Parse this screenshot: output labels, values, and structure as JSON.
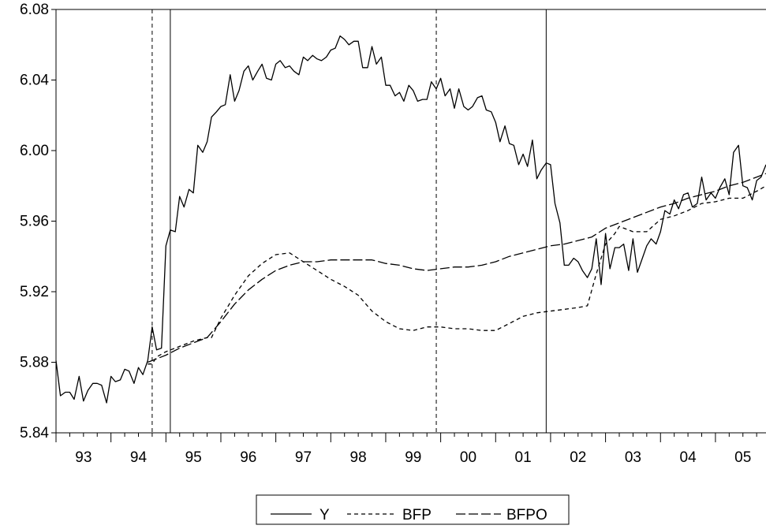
{
  "chart_data": {
    "type": "line",
    "title": "",
    "xlabel": "",
    "ylabel": "",
    "ylim": [
      5.84,
      6.08
    ],
    "yticks": [
      "5.84",
      "5.88",
      "5.92",
      "5.96",
      "6.00",
      "6.04",
      "6.08"
    ],
    "xlim": [
      1993.0,
      2005.92
    ],
    "xticks": [
      {
        "label": "93",
        "x": 1993.5
      },
      {
        "label": "94",
        "x": 1994.5
      },
      {
        "label": "95",
        "x": 1995.5
      },
      {
        "label": "96",
        "x": 1996.5
      },
      {
        "label": "97",
        "x": 1997.5
      },
      {
        "label": "98",
        "x": 1998.5
      },
      {
        "label": "99",
        "x": 1999.5
      },
      {
        "label": "00",
        "x": 2000.5
      },
      {
        "label": "01",
        "x": 2001.5
      },
      {
        "label": "02",
        "x": 2002.5
      },
      {
        "label": "03",
        "x": 2003.5
      },
      {
        "label": "04",
        "x": 2004.5
      },
      {
        "label": "05",
        "x": 2005.5
      }
    ],
    "grid": false,
    "legend_position": "bottom-center",
    "vlines": [
      {
        "x": 1994.75,
        "style": "dashed"
      },
      {
        "x": 1995.08,
        "style": "solid"
      },
      {
        "x": 1999.92,
        "style": "dashed"
      },
      {
        "x": 2001.92,
        "style": "solid"
      }
    ],
    "series": [
      {
        "name": "Y",
        "style": "solid",
        "points": [
          [
            1993.0,
            5.881
          ],
          [
            1993.08,
            5.861
          ],
          [
            1993.17,
            5.863
          ],
          [
            1993.25,
            5.863
          ],
          [
            1993.33,
            5.859
          ],
          [
            1993.42,
            5.872
          ],
          [
            1993.5,
            5.858
          ],
          [
            1993.58,
            5.864
          ],
          [
            1993.67,
            5.868
          ],
          [
            1993.75,
            5.868
          ],
          [
            1993.83,
            5.867
          ],
          [
            1993.92,
            5.857
          ],
          [
            1994.0,
            5.872
          ],
          [
            1994.08,
            5.869
          ],
          [
            1994.17,
            5.87
          ],
          [
            1994.25,
            5.876
          ],
          [
            1994.33,
            5.875
          ],
          [
            1994.42,
            5.868
          ],
          [
            1994.5,
            5.877
          ],
          [
            1994.58,
            5.873
          ],
          [
            1994.67,
            5.881
          ],
          [
            1994.75,
            5.9
          ],
          [
            1994.83,
            5.887
          ],
          [
            1994.92,
            5.888
          ],
          [
            1995.0,
            5.946
          ],
          [
            1995.08,
            5.955
          ],
          [
            1995.17,
            5.954
          ],
          [
            1995.25,
            5.974
          ],
          [
            1995.33,
            5.968
          ],
          [
            1995.42,
            5.978
          ],
          [
            1995.5,
            5.976
          ],
          [
            1995.58,
            6.003
          ],
          [
            1995.67,
            5.999
          ],
          [
            1995.75,
            6.005
          ],
          [
            1995.83,
            6.019
          ],
          [
            1995.92,
            6.022
          ],
          [
            1996.0,
            6.025
          ],
          [
            1996.08,
            6.026
          ],
          [
            1996.17,
            6.043
          ],
          [
            1996.25,
            6.028
          ],
          [
            1996.33,
            6.034
          ],
          [
            1996.42,
            6.045
          ],
          [
            1996.5,
            6.048
          ],
          [
            1996.58,
            6.04
          ],
          [
            1996.67,
            6.045
          ],
          [
            1996.75,
            6.049
          ],
          [
            1996.83,
            6.041
          ],
          [
            1996.92,
            6.04
          ],
          [
            1997.0,
            6.049
          ],
          [
            1997.08,
            6.051
          ],
          [
            1997.17,
            6.047
          ],
          [
            1997.25,
            6.048
          ],
          [
            1997.33,
            6.045
          ],
          [
            1997.42,
            6.043
          ],
          [
            1997.5,
            6.053
          ],
          [
            1997.58,
            6.051
          ],
          [
            1997.67,
            6.054
          ],
          [
            1997.75,
            6.052
          ],
          [
            1997.83,
            6.051
          ],
          [
            1997.92,
            6.053
          ],
          [
            1998.0,
            6.057
          ],
          [
            1998.08,
            6.058
          ],
          [
            1998.17,
            6.065
          ],
          [
            1998.25,
            6.063
          ],
          [
            1998.33,
            6.06
          ],
          [
            1998.42,
            6.062
          ],
          [
            1998.5,
            6.062
          ],
          [
            1998.58,
            6.047
          ],
          [
            1998.67,
            6.047
          ],
          [
            1998.75,
            6.059
          ],
          [
            1998.83,
            6.049
          ],
          [
            1998.92,
            6.053
          ],
          [
            1999.0,
            6.037
          ],
          [
            1999.08,
            6.037
          ],
          [
            1999.17,
            6.031
          ],
          [
            1999.25,
            6.033
          ],
          [
            1999.33,
            6.028
          ],
          [
            1999.42,
            6.037
          ],
          [
            1999.5,
            6.034
          ],
          [
            1999.58,
            6.028
          ],
          [
            1999.67,
            6.029
          ],
          [
            1999.75,
            6.029
          ],
          [
            1999.83,
            6.039
          ],
          [
            1999.92,
            6.035
          ],
          [
            2000.0,
            6.041
          ],
          [
            2000.08,
            6.031
          ],
          [
            2000.17,
            6.035
          ],
          [
            2000.25,
            6.024
          ],
          [
            2000.33,
            6.035
          ],
          [
            2000.42,
            6.025
          ],
          [
            2000.5,
            6.023
          ],
          [
            2000.58,
            6.025
          ],
          [
            2000.67,
            6.03
          ],
          [
            2000.75,
            6.031
          ],
          [
            2000.83,
            6.023
          ],
          [
            2000.92,
            6.022
          ],
          [
            2001.0,
            6.016
          ],
          [
            2001.08,
            6.005
          ],
          [
            2001.17,
            6.014
          ],
          [
            2001.25,
            6.004
          ],
          [
            2001.33,
            6.003
          ],
          [
            2001.42,
            5.992
          ],
          [
            2001.5,
            5.998
          ],
          [
            2001.58,
            5.991
          ],
          [
            2001.67,
            6.006
          ],
          [
            2001.75,
            5.984
          ],
          [
            2001.83,
            5.989
          ],
          [
            2001.92,
            5.993
          ],
          [
            2002.0,
            5.992
          ],
          [
            2002.08,
            5.97
          ],
          [
            2002.17,
            5.959
          ],
          [
            2002.25,
            5.935
          ],
          [
            2002.33,
            5.935
          ],
          [
            2002.42,
            5.939
          ],
          [
            2002.5,
            5.937
          ],
          [
            2002.58,
            5.932
          ],
          [
            2002.67,
            5.928
          ],
          [
            2002.75,
            5.933
          ],
          [
            2002.83,
            5.95
          ],
          [
            2002.92,
            5.924
          ],
          [
            2003.0,
            5.953
          ],
          [
            2003.08,
            5.933
          ],
          [
            2003.17,
            5.945
          ],
          [
            2003.25,
            5.945
          ],
          [
            2003.33,
            5.947
          ],
          [
            2003.42,
            5.932
          ],
          [
            2003.5,
            5.95
          ],
          [
            2003.58,
            5.931
          ],
          [
            2003.67,
            5.939
          ],
          [
            2003.75,
            5.946
          ],
          [
            2003.83,
            5.95
          ],
          [
            2003.92,
            5.947
          ],
          [
            2004.0,
            5.954
          ],
          [
            2004.08,
            5.966
          ],
          [
            2004.17,
            5.964
          ],
          [
            2004.25,
            5.972
          ],
          [
            2004.33,
            5.967
          ],
          [
            2004.42,
            5.975
          ],
          [
            2004.5,
            5.976
          ],
          [
            2004.58,
            5.968
          ],
          [
            2004.67,
            5.97
          ],
          [
            2004.75,
            5.985
          ],
          [
            2004.83,
            5.972
          ],
          [
            2004.92,
            5.976
          ],
          [
            2005.0,
            5.973
          ],
          [
            2005.08,
            5.979
          ],
          [
            2005.17,
            5.984
          ],
          [
            2005.25,
            5.975
          ],
          [
            2005.33,
            5.999
          ],
          [
            2005.42,
            6.003
          ],
          [
            2005.5,
            5.98
          ],
          [
            2005.58,
            5.979
          ],
          [
            2005.67,
            5.972
          ],
          [
            2005.75,
            5.983
          ],
          [
            2005.83,
            5.985
          ],
          [
            2005.92,
            5.992
          ]
        ]
      },
      {
        "name": "BFP",
        "style": "dashed",
        "points": [
          [
            1994.67,
            5.879
          ],
          [
            1994.75,
            5.879
          ],
          [
            1994.83,
            5.883
          ],
          [
            1995.0,
            5.886
          ],
          [
            1995.25,
            5.889
          ],
          [
            1995.5,
            5.892
          ],
          [
            1995.75,
            5.894
          ],
          [
            1995.83,
            5.894
          ],
          [
            1996.0,
            5.905
          ],
          [
            1996.25,
            5.918
          ],
          [
            1996.5,
            5.929
          ],
          [
            1996.75,
            5.936
          ],
          [
            1997.0,
            5.941
          ],
          [
            1997.25,
            5.942
          ],
          [
            1997.5,
            5.937
          ],
          [
            1997.75,
            5.932
          ],
          [
            1998.0,
            5.927
          ],
          [
            1998.25,
            5.923
          ],
          [
            1998.5,
            5.918
          ],
          [
            1998.75,
            5.909
          ],
          [
            1999.0,
            5.903
          ],
          [
            1999.25,
            5.899
          ],
          [
            1999.5,
            5.898
          ],
          [
            1999.75,
            5.9
          ],
          [
            2000.0,
            5.9
          ],
          [
            2000.25,
            5.899
          ],
          [
            2000.5,
            5.899
          ],
          [
            2000.75,
            5.898
          ],
          [
            2001.0,
            5.898
          ],
          [
            2001.25,
            5.902
          ],
          [
            2001.5,
            5.906
          ],
          [
            2001.75,
            5.908
          ],
          [
            2002.0,
            5.909
          ],
          [
            2002.25,
            5.91
          ],
          [
            2002.5,
            5.911
          ],
          [
            2002.67,
            5.912
          ],
          [
            2002.83,
            5.93
          ],
          [
            2003.0,
            5.947
          ],
          [
            2003.17,
            5.953
          ],
          [
            2003.25,
            5.957
          ],
          [
            2003.5,
            5.954
          ],
          [
            2003.75,
            5.954
          ],
          [
            2004.0,
            5.961
          ],
          [
            2004.25,
            5.963
          ],
          [
            2004.5,
            5.966
          ],
          [
            2004.75,
            5.97
          ],
          [
            2005.0,
            5.971
          ],
          [
            2005.25,
            5.973
          ],
          [
            2005.5,
            5.973
          ],
          [
            2005.75,
            5.977
          ],
          [
            2005.92,
            5.98
          ]
        ]
      },
      {
        "name": "BFPO",
        "style": "longdash",
        "points": [
          [
            1994.67,
            5.88
          ],
          [
            1995.0,
            5.884
          ],
          [
            1995.25,
            5.888
          ],
          [
            1995.5,
            5.891
          ],
          [
            1995.75,
            5.894
          ],
          [
            1996.0,
            5.903
          ],
          [
            1996.25,
            5.913
          ],
          [
            1996.5,
            5.921
          ],
          [
            1996.75,
            5.927
          ],
          [
            1997.0,
            5.932
          ],
          [
            1997.25,
            5.935
          ],
          [
            1997.5,
            5.937
          ],
          [
            1997.75,
            5.937
          ],
          [
            1998.0,
            5.938
          ],
          [
            1998.25,
            5.938
          ],
          [
            1998.5,
            5.938
          ],
          [
            1998.75,
            5.938
          ],
          [
            1999.0,
            5.936
          ],
          [
            1999.25,
            5.935
          ],
          [
            1999.5,
            5.933
          ],
          [
            1999.75,
            5.932
          ],
          [
            2000.0,
            5.933
          ],
          [
            2000.25,
            5.934
          ],
          [
            2000.5,
            5.934
          ],
          [
            2000.75,
            5.935
          ],
          [
            2001.0,
            5.937
          ],
          [
            2001.25,
            5.94
          ],
          [
            2001.5,
            5.942
          ],
          [
            2001.75,
            5.944
          ],
          [
            2002.0,
            5.946
          ],
          [
            2002.25,
            5.947
          ],
          [
            2002.5,
            5.949
          ],
          [
            2002.75,
            5.951
          ],
          [
            2003.0,
            5.956
          ],
          [
            2003.25,
            5.959
          ],
          [
            2003.5,
            5.962
          ],
          [
            2003.75,
            5.965
          ],
          [
            2004.0,
            5.968
          ],
          [
            2004.25,
            5.97
          ],
          [
            2004.5,
            5.973
          ],
          [
            2004.75,
            5.975
          ],
          [
            2005.0,
            5.977
          ],
          [
            2005.25,
            5.98
          ],
          [
            2005.5,
            5.982
          ],
          [
            2005.75,
            5.985
          ],
          [
            2005.92,
            5.987
          ]
        ]
      }
    ]
  }
}
